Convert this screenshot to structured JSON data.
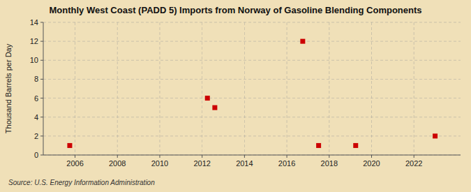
{
  "chart_data": {
    "type": "scatter",
    "title": "Monthly West Coast (PADD 5) Imports from Norway of Gasoline Blending Components",
    "ylabel": "Thousand Barrels per Day",
    "source": "Source: U.S. Energy Information Administration",
    "x": [
      2005.75,
      2012.25,
      2012.6,
      2016.75,
      2017.5,
      2019.25,
      2023.0
    ],
    "values": [
      1,
      6,
      5,
      12,
      1,
      1,
      2
    ],
    "color": "#cc0000",
    "marker": "square",
    "xlim": [
      2004.5,
      2024.2
    ],
    "ylim": [
      0,
      14
    ],
    "xticks": [
      2006,
      2008,
      2010,
      2012,
      2014,
      2016,
      2018,
      2020,
      2022
    ],
    "yticks": [
      0,
      2,
      4,
      6,
      8,
      10,
      12,
      14
    ],
    "grid": true
  }
}
